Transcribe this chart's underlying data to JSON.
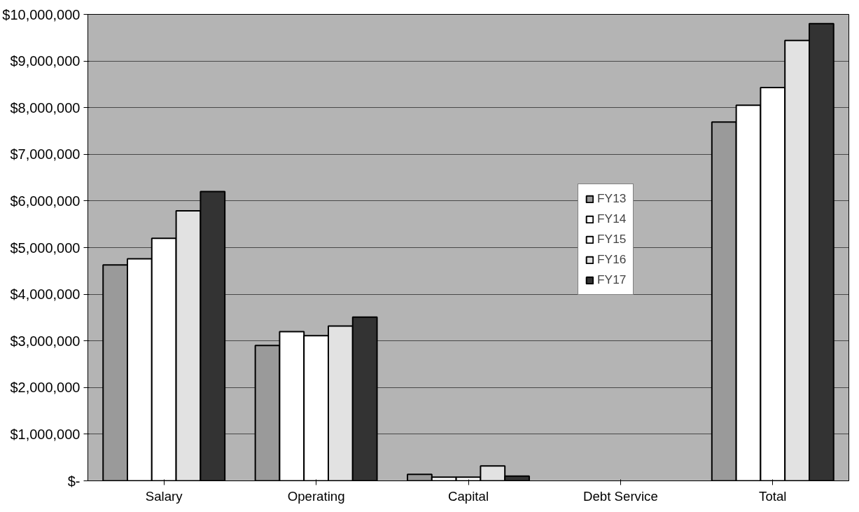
{
  "chart_data": {
    "type": "bar",
    "categories": [
      "Salary",
      "Operating",
      "Capital",
      "Debt Service",
      "Total"
    ],
    "series": [
      {
        "name": "FY13",
        "color": "#9a9a9a",
        "values": [
          4630000,
          2900000,
          140000,
          0,
          7690000
        ]
      },
      {
        "name": "FY14",
        "color": "#ffffff",
        "values": [
          4760000,
          3200000,
          80000,
          0,
          8050000
        ]
      },
      {
        "name": "FY15",
        "color": "#ffffff",
        "values": [
          5200000,
          3110000,
          80000,
          0,
          8430000
        ]
      },
      {
        "name": "FY16",
        "color": "#e2e2e2",
        "values": [
          5790000,
          3320000,
          320000,
          0,
          9440000
        ]
      },
      {
        "name": "FY17",
        "color": "#333333",
        "values": [
          6200000,
          3510000,
          100000,
          0,
          9800000
        ]
      }
    ],
    "ylim": [
      0,
      10000000
    ],
    "yticks": [
      {
        "value": 0,
        "label": "$-"
      },
      {
        "value": 1000000,
        "label": "$1,000,000"
      },
      {
        "value": 2000000,
        "label": "$2,000,000"
      },
      {
        "value": 3000000,
        "label": "$3,000,000"
      },
      {
        "value": 4000000,
        "label": "$4,000,000"
      },
      {
        "value": 5000000,
        "label": "$5,000,000"
      },
      {
        "value": 6000000,
        "label": "$6,000,000"
      },
      {
        "value": 7000000,
        "label": "$7,000,000"
      },
      {
        "value": 8000000,
        "label": "$8,000,000"
      },
      {
        "value": 9000000,
        "label": "$9,000,000"
      },
      {
        "value": 10000000,
        "label": "$10,000,000"
      }
    ],
    "grid": "y",
    "legend": "right"
  }
}
